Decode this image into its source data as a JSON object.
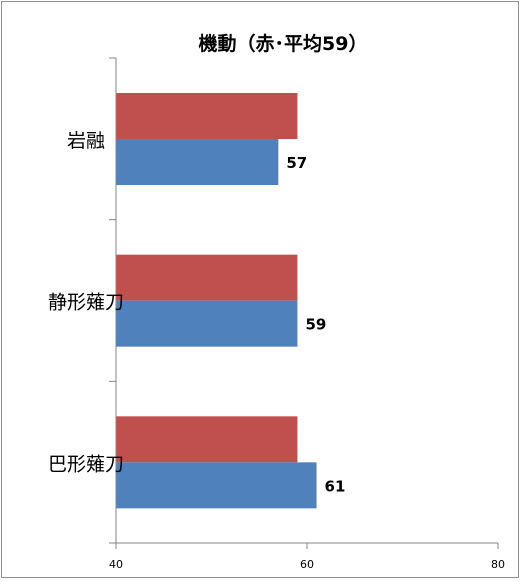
{
  "chart_data": {
    "type": "bar",
    "orientation": "horizontal",
    "title": "機動（赤･平均59）",
    "categories": [
      "岩融",
      "静形薙刀",
      "巴形薙刀"
    ],
    "series": [
      {
        "values": [
          59,
          59,
          59
        ],
        "color": "#c0504d"
      },
      {
        "values": [
          57,
          59,
          61
        ],
        "color": "#4f81bd"
      }
    ],
    "data_labels": [
      "57",
      "59",
      "61"
    ],
    "xlim": [
      40,
      80
    ],
    "x_ticks": [
      "40",
      "60",
      "80"
    ],
    "xlabel": "",
    "ylabel": "",
    "grid": false,
    "legend": "none"
  }
}
